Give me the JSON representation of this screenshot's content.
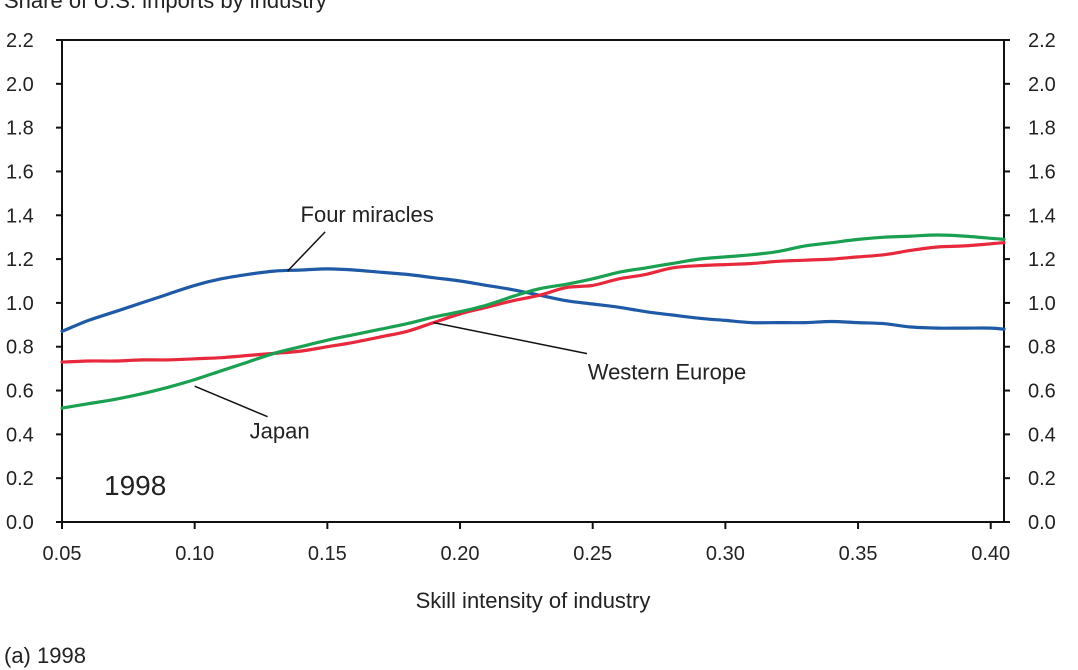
{
  "caption": "(a) 1998",
  "chart_data": {
    "type": "line",
    "title": "Share of U.S. imports by industry",
    "xlabel": "Skill intensity of industry",
    "ylabel": "",
    "xlim": [
      0.05,
      0.405
    ],
    "ylim": [
      0,
      2.2
    ],
    "x_ticks": [
      "0.05",
      "0.10",
      "0.15",
      "0.20",
      "0.25",
      "0.30",
      "0.35",
      "0.40"
    ],
    "y_ticks": [
      "0.0",
      "0.2",
      "0.4",
      "0.6",
      "0.8",
      "1.0",
      "1.2",
      "1.4",
      "1.6",
      "1.8",
      "2.0",
      "2.2"
    ],
    "year_label": "1998",
    "colors": {
      "Four miracles": "#1f5aa6",
      "Western Europe": "#e8283c",
      "Japan": "#1aa050"
    },
    "series": [
      {
        "name": "Four miracles",
        "x": [
          0.05,
          0.06,
          0.07,
          0.08,
          0.09,
          0.1,
          0.11,
          0.12,
          0.13,
          0.14,
          0.15,
          0.16,
          0.17,
          0.18,
          0.19,
          0.2,
          0.21,
          0.22,
          0.23,
          0.24,
          0.25,
          0.26,
          0.27,
          0.28,
          0.29,
          0.3,
          0.31,
          0.32,
          0.33,
          0.34,
          0.35,
          0.36,
          0.37,
          0.38,
          0.39,
          0.4,
          0.405
        ],
        "y": [
          0.87,
          0.92,
          0.96,
          1.0,
          1.04,
          1.08,
          1.11,
          1.13,
          1.145,
          1.15,
          1.155,
          1.15,
          1.14,
          1.13,
          1.115,
          1.1,
          1.08,
          1.06,
          1.035,
          1.01,
          0.995,
          0.98,
          0.96,
          0.945,
          0.93,
          0.92,
          0.91,
          0.91,
          0.91,
          0.915,
          0.91,
          0.905,
          0.89,
          0.885,
          0.885,
          0.885,
          0.88
        ]
      },
      {
        "name": "Western Europe",
        "x": [
          0.05,
          0.06,
          0.07,
          0.08,
          0.09,
          0.1,
          0.11,
          0.12,
          0.13,
          0.14,
          0.15,
          0.16,
          0.17,
          0.18,
          0.19,
          0.2,
          0.21,
          0.22,
          0.23,
          0.24,
          0.25,
          0.26,
          0.27,
          0.28,
          0.29,
          0.3,
          0.31,
          0.32,
          0.33,
          0.34,
          0.35,
          0.36,
          0.37,
          0.38,
          0.39,
          0.4,
          0.405
        ],
        "y": [
          0.73,
          0.735,
          0.735,
          0.74,
          0.74,
          0.745,
          0.75,
          0.76,
          0.77,
          0.78,
          0.8,
          0.82,
          0.845,
          0.87,
          0.91,
          0.95,
          0.98,
          1.01,
          1.035,
          1.07,
          1.08,
          1.11,
          1.13,
          1.16,
          1.17,
          1.175,
          1.18,
          1.19,
          1.195,
          1.2,
          1.21,
          1.22,
          1.24,
          1.255,
          1.26,
          1.27,
          1.275
        ]
      },
      {
        "name": "Japan",
        "x": [
          0.05,
          0.06,
          0.07,
          0.08,
          0.09,
          0.1,
          0.11,
          0.12,
          0.13,
          0.14,
          0.15,
          0.16,
          0.17,
          0.18,
          0.19,
          0.2,
          0.21,
          0.22,
          0.23,
          0.24,
          0.25,
          0.26,
          0.27,
          0.28,
          0.29,
          0.3,
          0.31,
          0.32,
          0.33,
          0.34,
          0.35,
          0.36,
          0.37,
          0.38,
          0.39,
          0.4,
          0.405
        ],
        "y": [
          0.52,
          0.54,
          0.56,
          0.585,
          0.615,
          0.65,
          0.69,
          0.73,
          0.77,
          0.8,
          0.83,
          0.855,
          0.88,
          0.905,
          0.935,
          0.96,
          0.99,
          1.03,
          1.065,
          1.085,
          1.11,
          1.14,
          1.16,
          1.18,
          1.2,
          1.21,
          1.22,
          1.235,
          1.26,
          1.275,
          1.29,
          1.3,
          1.305,
          1.31,
          1.305,
          1.295,
          1.29
        ]
      }
    ],
    "annotations": [
      {
        "text": "Four miracles",
        "series": "Four miracles",
        "label_x": 0.165,
        "label_y": 1.37,
        "point_x": 0.135,
        "point_y": 1.145
      },
      {
        "text": "Western Europe",
        "series": "Western Europe",
        "label_x": 0.278,
        "label_y": 0.65,
        "point_x": 0.19,
        "point_y": 0.91
      },
      {
        "text": "Japan",
        "series": "Japan",
        "label_x": 0.132,
        "label_y": 0.38,
        "point_x": 0.1,
        "point_y": 0.62
      }
    ]
  }
}
